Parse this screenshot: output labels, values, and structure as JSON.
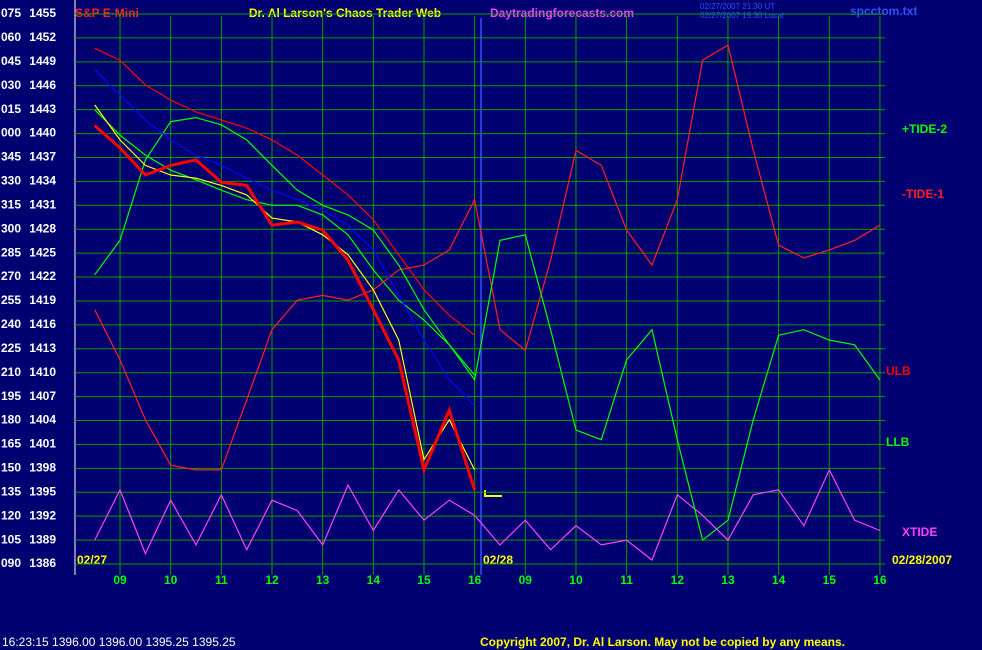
{
  "chart_data": {
    "type": "line",
    "title": "Dr. Al Larson's Chaos Trader Web",
    "instrument": "S&P E-Mini",
    "website": "Daytradingforecasts.com",
    "timestamps": [
      "02/27/2007 21:30 UT",
      "02/27/2007 15:30 Local"
    ],
    "file_name": "spcctom.txt",
    "status_line": "16:23:15  1396.00 1396.00 1395.25 1395.25",
    "copyright": "Copyright 2007, Dr. Al Larson. May not be copied by any means.",
    "date_labels": [
      "02/27",
      "02/28",
      "02/28/2007"
    ],
    "categories": [
      null,
      "09",
      null,
      "10",
      null,
      "11",
      null,
      "12",
      null,
      "13",
      null,
      "14",
      null,
      "15",
      null,
      "16",
      null,
      "09",
      null,
      "10",
      null,
      "11",
      null,
      "12",
      null,
      "13",
      null,
      "14",
      null,
      "15",
      null,
      "16"
    ],
    "ylim": [
      1386,
      1455
    ],
    "yticks": [
      1455,
      1452,
      1449,
      1446,
      1443,
      1440,
      1437,
      1434,
      1431,
      1428,
      1425,
      1422,
      1419,
      1416,
      1413,
      1410,
      1407,
      1404,
      1401,
      1398,
      1395,
      1392,
      1389,
      1386
    ],
    "angle_labels": [
      "075",
      "060",
      "045",
      "030",
      "015",
      "000",
      "345",
      "330",
      "315",
      "300",
      "285",
      "270",
      "255",
      "240",
      "225",
      "210",
      "195",
      "180",
      "165",
      "150",
      "135",
      "120",
      "105",
      "090"
    ],
    "grid": true,
    "series": [
      {
        "color": "#ff0000",
        "values": [
          1441,
          1438.2,
          1434.8,
          1436,
          1436.7,
          1433.9,
          1433.5,
          1428.5,
          1428.9,
          1427.9,
          1424.1,
          1417.9,
          1411.6,
          1397.8,
          1405.3,
          1395.3,
          null,
          null,
          null,
          null,
          null,
          null,
          null,
          null,
          null,
          null,
          null,
          null,
          null,
          null,
          null,
          null
        ]
      },
      {
        "color": "#ffff00",
        "values": [
          1443.6,
          1439.2,
          1436,
          1434.8,
          1434.4,
          1433.5,
          1432.3,
          1429.4,
          1428.9,
          1427.3,
          1424.8,
          1420.4,
          1414.1,
          1399.1,
          1404.1,
          1397.8,
          null,
          null,
          null,
          null,
          null,
          null,
          null,
          null,
          null,
          null,
          null,
          null,
          null,
          null,
          null,
          null
        ]
      },
      {
        "color": "#0000ff",
        "values": [
          1448,
          1444.8,
          1441.7,
          1439.2,
          1437.3,
          1436,
          1434.4,
          1432.9,
          1431.7,
          1430.4,
          1428.5,
          1425.4,
          1419.7,
          1414.1,
          1409.1,
          1405.9,
          null,
          null,
          null,
          null,
          null,
          null,
          null,
          null,
          null,
          null,
          null,
          null,
          null,
          null,
          null,
          null
        ]
      },
      {
        "name": "+TIDE-2",
        "color": "#00ff00",
        "values": [
          1422.3,
          1426.6,
          1436.7,
          1441.5,
          1442,
          1441.1,
          1439.2,
          1436,
          1432.9,
          1431,
          1429.8,
          1427.9,
          1423.5,
          1417.9,
          1413.5,
          1409.1,
          1426.6,
          1427.3,
          1415.4,
          1402.8,
          1401.6,
          1411.6,
          1415.4,
          1401.6,
          1389,
          1391.5,
          1404.1,
          1414.7,
          1415.4,
          1414.1,
          1413.5,
          1409.1
        ]
      },
      {
        "name": "-TIDE-1",
        "color": "#ff2020",
        "values": [
          1417.9,
          1411.6,
          1404.1,
          1398.4,
          1397.8,
          1397.8,
          1406.6,
          1415.4,
          1419.1,
          1419.7,
          1419.1,
          1420.4,
          1422.9,
          1423.5,
          1425.4,
          1431.7,
          1415.4,
          1412.8,
          1424.1,
          1437.9,
          1436,
          1427.9,
          1423.5,
          1431.7,
          1449.2,
          1451.1,
          1437.9,
          1426,
          1424.4,
          1425.4,
          1426.6,
          1428.5
        ]
      },
      {
        "name": "ULB",
        "color": "#ff0000",
        "values": [
          1450.7,
          1449.2,
          1446.1,
          1444.2,
          1442.7,
          1441.7,
          1440.7,
          1439.2,
          1437.3,
          1434.8,
          1432.3,
          1429.2,
          1424.8,
          1420.4,
          1417.2,
          1414.7,
          null,
          null,
          null,
          null,
          null,
          null,
          null,
          null,
          null,
          null,
          null,
          null,
          null,
          null,
          null,
          null
        ]
      },
      {
        "name": "LLB",
        "color": "#00ff00",
        "values": [
          1443,
          1439.8,
          1437.3,
          1435.4,
          1434.2,
          1432.9,
          1431.7,
          1431,
          1431,
          1429.8,
          1427.3,
          1422.9,
          1419.1,
          1416.6,
          1413.5,
          1409.7,
          null,
          null,
          null,
          null,
          null,
          null,
          null,
          null,
          null,
          null,
          null,
          null,
          null,
          null,
          null,
          null
        ]
      },
      {
        "name": "XTIDE",
        "color": "#ff40ff",
        "values": [
          1389,
          1395.3,
          1387.3,
          1394,
          1388.4,
          1394.7,
          1387.8,
          1394,
          1392.7,
          1388.4,
          1395.9,
          1390.2,
          1395.3,
          1391.5,
          1394,
          1392.1,
          1388.4,
          1391.5,
          1387.8,
          1390.8,
          1388.4,
          1389,
          1386.5,
          1394.7,
          1392.1,
          1389,
          1394.7,
          1395.3,
          1390.8,
          1397.8,
          1391.5,
          1390.2
        ]
      }
    ]
  }
}
